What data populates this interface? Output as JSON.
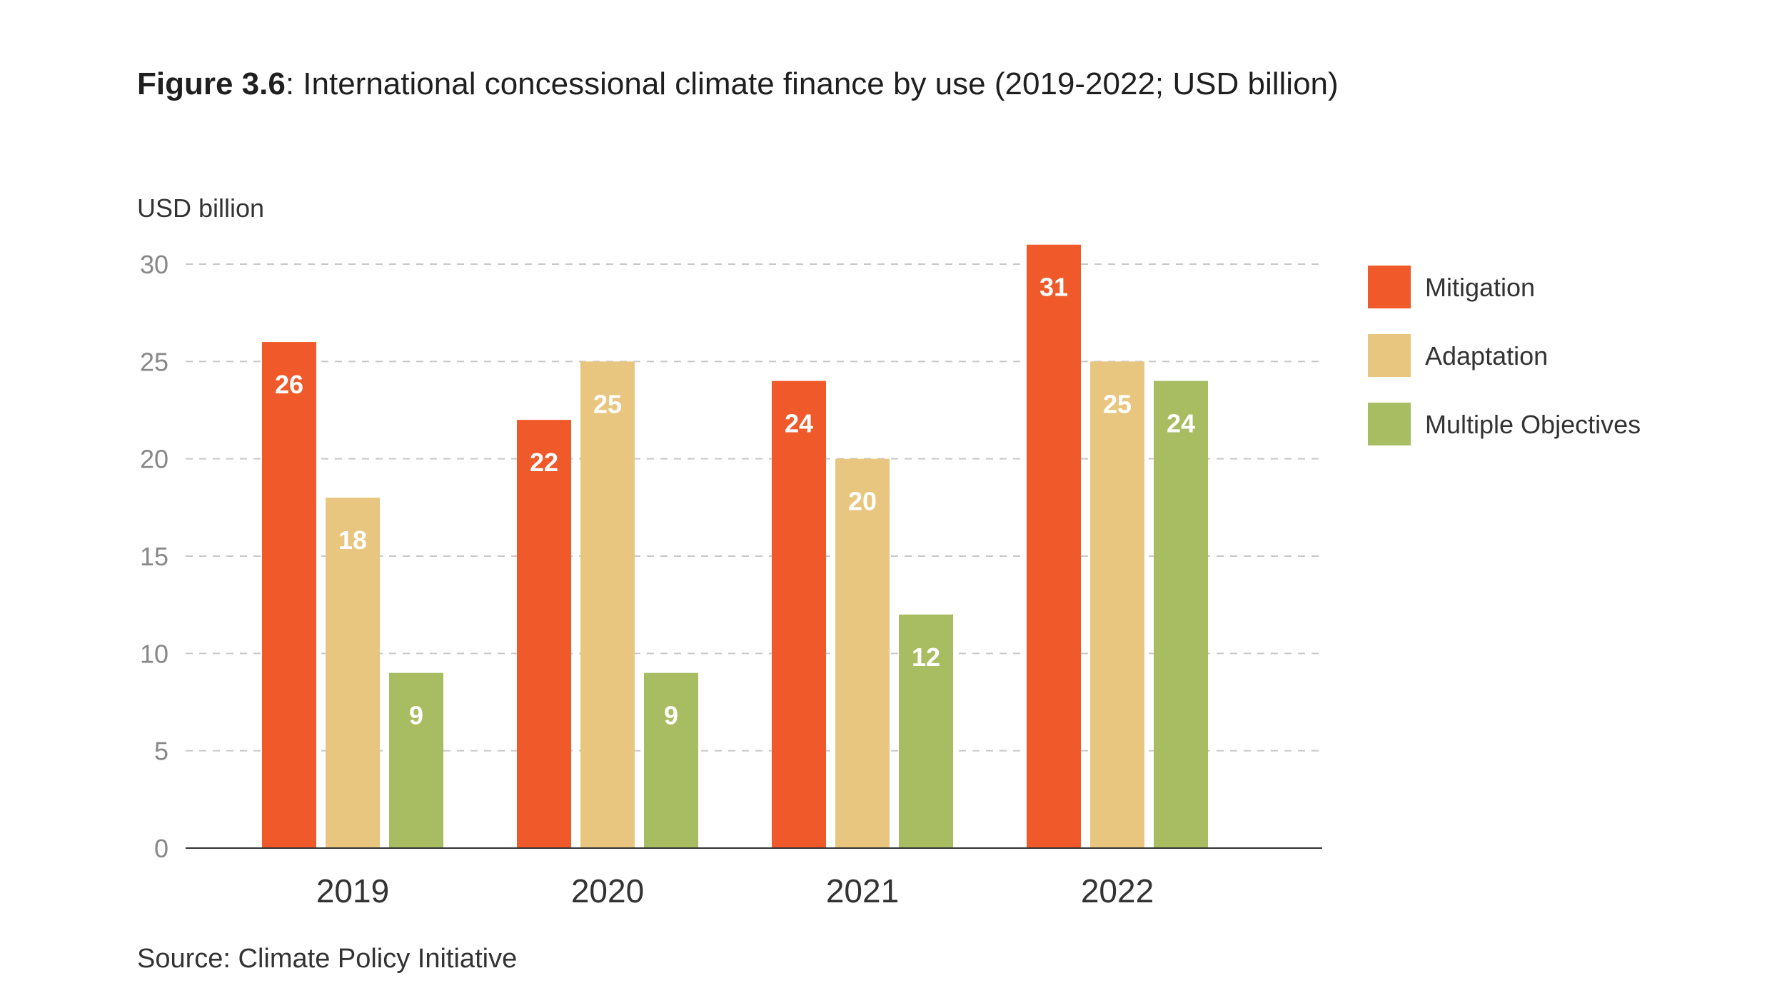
{
  "title": {
    "bold": "Figure 3.6",
    "rest": ": International concessional climate finance by use (2019-2022; USD billion)"
  },
  "source": "Source: Climate Policy Initiative",
  "chart_data": {
    "type": "bar",
    "ylabel": "USD billion",
    "xlabel": "",
    "categories": [
      "2019",
      "2020",
      "2021",
      "2022"
    ],
    "series": [
      {
        "name": "Mitigation",
        "color": "#F05A2A",
        "values": [
          26,
          22,
          24,
          31
        ]
      },
      {
        "name": "Adaptation",
        "color": "#E8C680",
        "values": [
          18,
          25,
          20,
          25
        ]
      },
      {
        "name": "Multiple Objectives",
        "color": "#A8BC62",
        "values": [
          9,
          9,
          12,
          24
        ]
      }
    ],
    "ylim": [
      0,
      30
    ],
    "yticks": [
      0,
      5,
      10,
      15,
      20,
      25,
      30
    ],
    "grid": true,
    "grid_style": "dashed",
    "legend_position": "right",
    "data_labels": true
  }
}
